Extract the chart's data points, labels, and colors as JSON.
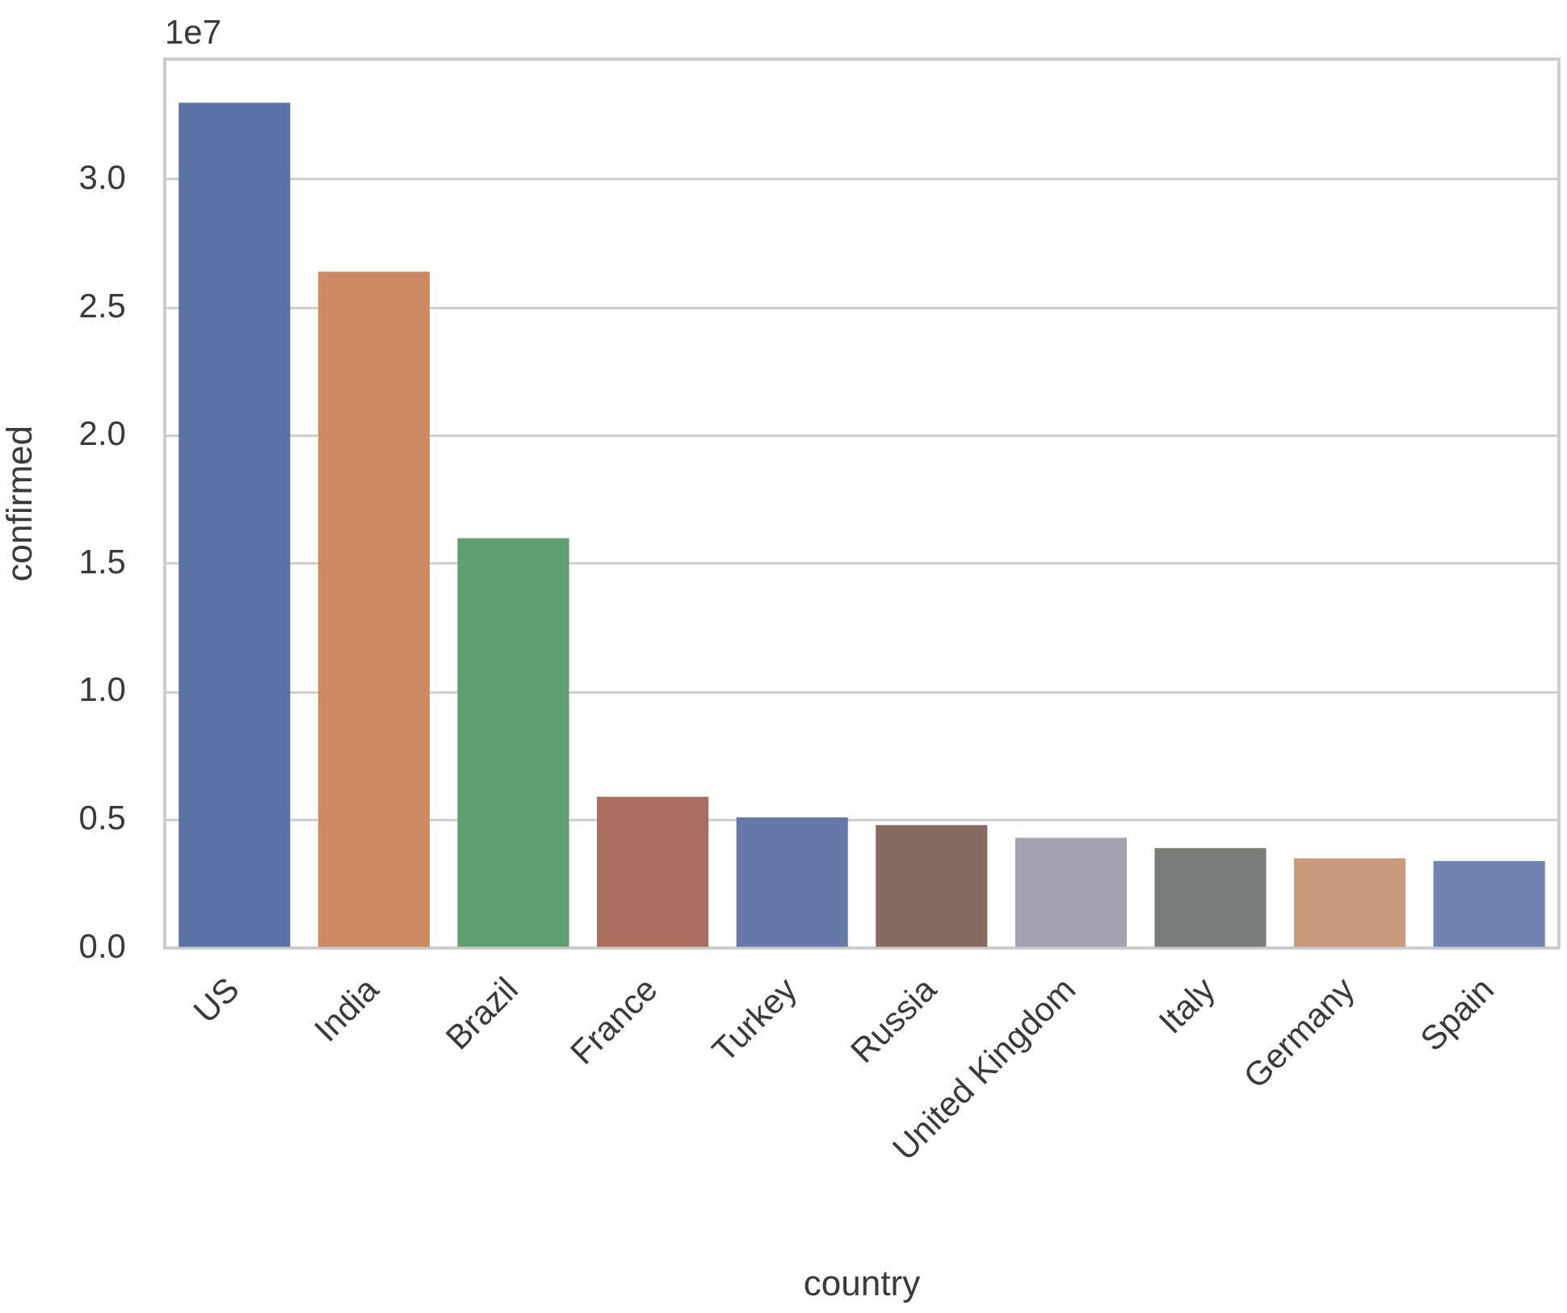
{
  "chart_data": {
    "type": "bar",
    "xlabel": "country",
    "ylabel": "confirmed",
    "annotations": [
      "1e7"
    ],
    "categories": [
      "US",
      "India",
      "Brazil",
      "France",
      "Turkey",
      "Russia",
      "United Kingdom",
      "Italy",
      "Germany",
      "Spain"
    ],
    "values": [
      3.3,
      2.64,
      1.6,
      0.59,
      0.51,
      0.48,
      0.43,
      0.39,
      0.35,
      0.34
    ],
    "colors": [
      "#5a72a5",
      "#cc8963",
      "#5f9e6e",
      "#a96e5f",
      "#6677aa",
      "#86695f",
      "#a4a3b3",
      "#797d79",
      "#c99a7b",
      "#7283b2"
    ],
    "ylim": [
      0,
      3.47
    ],
    "yticks": [
      {
        "value": 0,
        "label": "0.0"
      },
      0.5,
      {
        "value": 1,
        "label": "1.0"
      },
      1.5,
      {
        "value": 2,
        "label": "2.0"
      },
      2.5,
      {
        "value": 3,
        "label": "3.0"
      }
    ],
    "grid": "y"
  }
}
